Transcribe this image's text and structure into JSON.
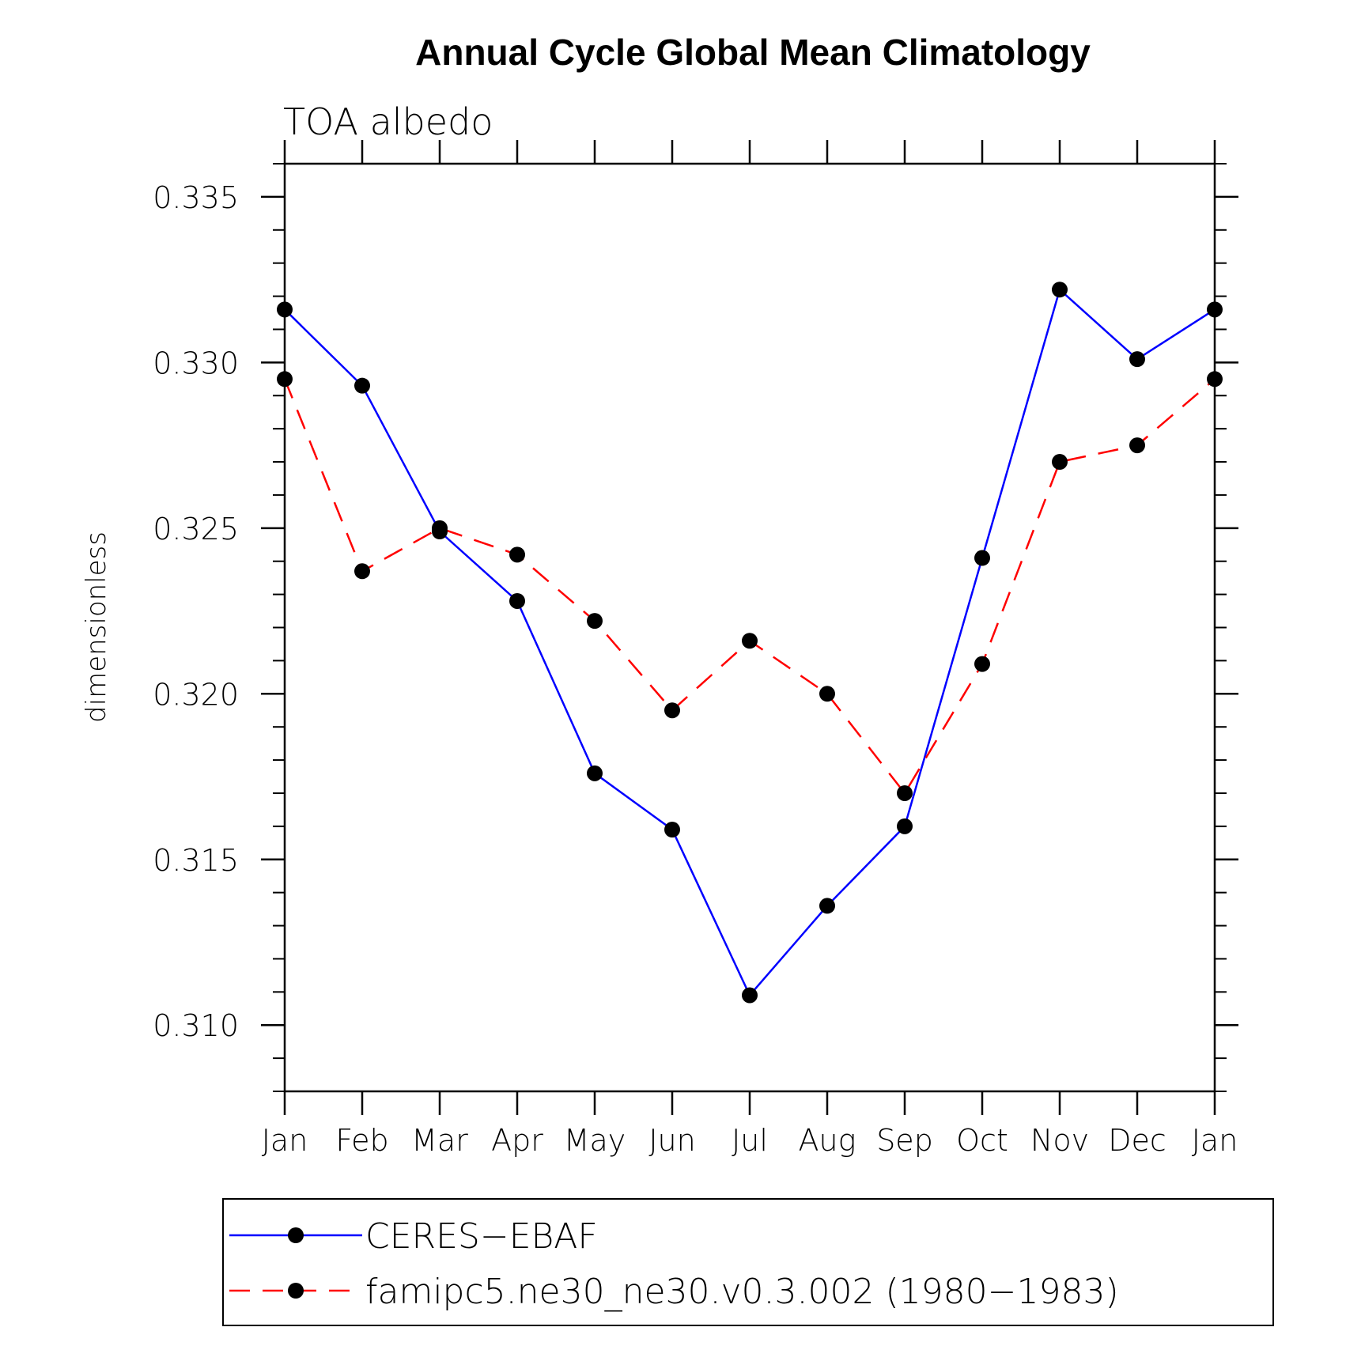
{
  "chart_data": {
    "type": "line",
    "title": "Annual Cycle Global Mean Climatology",
    "subtitle": "TOA albedo",
    "xlabel": "",
    "ylabel": "dimensionless",
    "categories": [
      "Jan",
      "Feb",
      "Mar",
      "Apr",
      "May",
      "Jun",
      "Jul",
      "Aug",
      "Sep",
      "Oct",
      "Nov",
      "Dec",
      "Jan"
    ],
    "ylim": [
      0.308,
      0.336
    ],
    "yticks": [
      0.31,
      0.315,
      0.32,
      0.325,
      0.33,
      0.335
    ],
    "ytick_labels": [
      "0.310",
      "0.315",
      "0.320",
      "0.325",
      "0.330",
      "0.335"
    ],
    "grid": false,
    "legend_position": "bottom",
    "series": [
      {
        "name": "CERES−EBAF",
        "color": "#0000ff",
        "line_style": "solid",
        "marker": "filled-circle",
        "values": [
          0.3316,
          0.3293,
          0.3249,
          0.3228,
          0.3176,
          0.3159,
          0.3109,
          0.3136,
          0.316,
          0.3241,
          0.3322,
          0.3301,
          0.3316
        ]
      },
      {
        "name": "famipc5.ne30_ne30.v0.3.002 (1980−1983)",
        "color": "#ff0000",
        "line_style": "dashed",
        "marker": "filled-circle",
        "values": [
          0.3295,
          0.3237,
          0.325,
          0.3242,
          0.3222,
          0.3195,
          0.3216,
          0.32,
          0.317,
          0.3209,
          0.327,
          0.3275,
          0.3295
        ]
      }
    ]
  }
}
